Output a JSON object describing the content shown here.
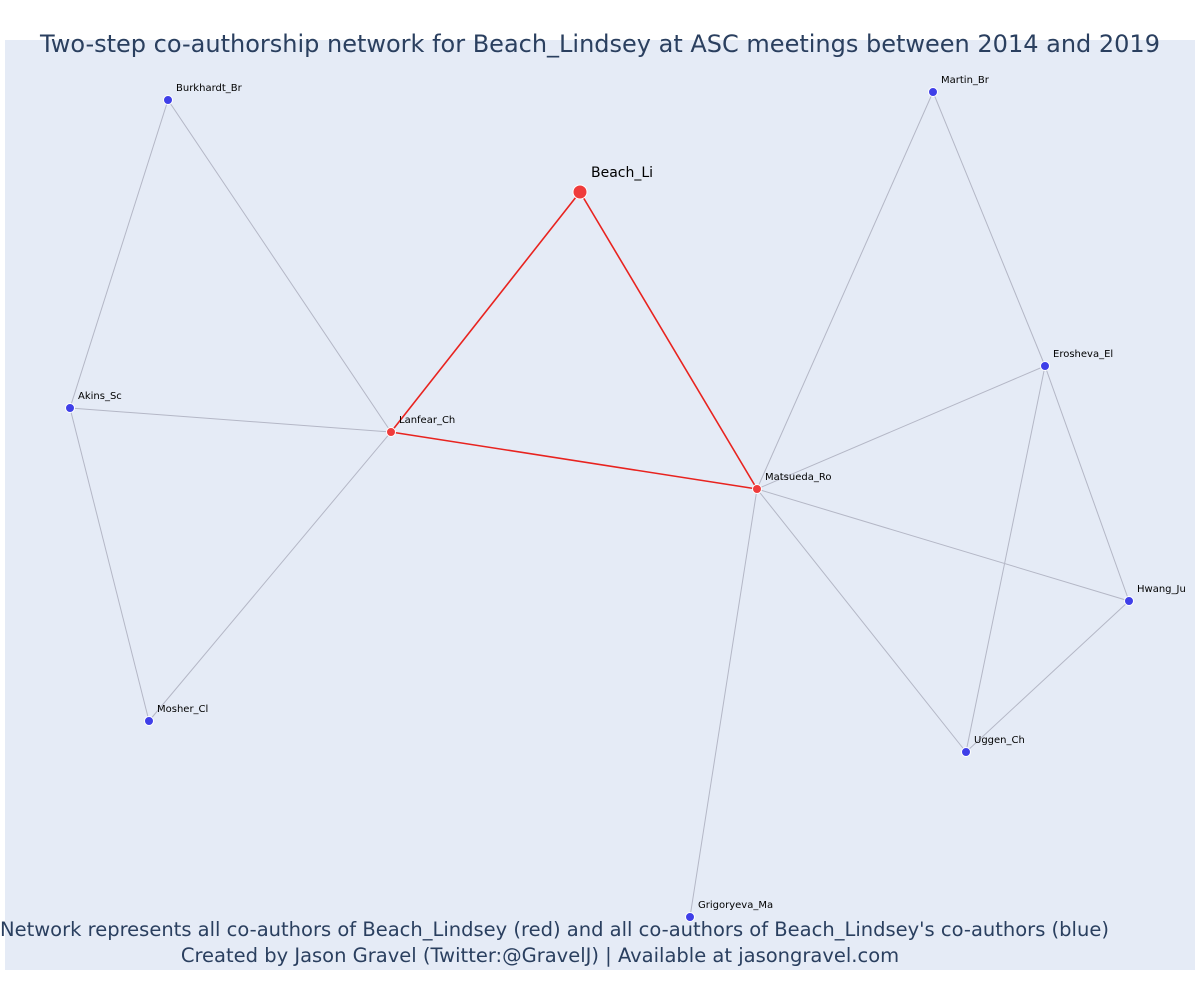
{
  "title": "Two-step co-authorship network for Beach_Lindsey at ASC meetings between 2014 and 2019",
  "caption": {
    "line1": "Network represents all co-authors of Beach_Lindsey (red) and all co-authors of Beach_Lindsey's co-authors (blue)",
    "line2": "Created by Jason Gravel (Twitter:@GravelJ) | Available at jasongravel.com"
  },
  "colors": {
    "background": "#e5ebf6",
    "focal_node": "#ef3b3b",
    "coauthor_node": "#ef3b3b",
    "second_step_node": "#3f3fe8",
    "focal_edge": "#e8231f",
    "other_edge": "#b4b7c6",
    "text": "#2a3f5f"
  },
  "nodes": [
    {
      "id": "Beach_Li",
      "label": "Beach_Li",
      "group": "focal"
    },
    {
      "id": "Lanfear_Ch",
      "label": "Lanfear_Ch",
      "group": "coauthor"
    },
    {
      "id": "Matsueda_Ro",
      "label": "Matsueda_Ro",
      "group": "coauthor"
    },
    {
      "id": "Burkhardt_Br",
      "label": "Burkhardt_Br",
      "group": "second"
    },
    {
      "id": "Akins_Sc",
      "label": "Akins_Sc",
      "group": "second"
    },
    {
      "id": "Mosher_Cl",
      "label": "Mosher_Cl",
      "group": "second"
    },
    {
      "id": "Martin_Br",
      "label": "Martin_Br",
      "group": "second"
    },
    {
      "id": "Erosheva_El",
      "label": "Erosheva_El",
      "group": "second"
    },
    {
      "id": "Hwang_Ju",
      "label": "Hwang_Ju",
      "group": "second"
    },
    {
      "id": "Uggen_Ch",
      "label": "Uggen_Ch",
      "group": "second"
    },
    {
      "id": "Grigoryeva_Ma",
      "label": "Grigoryeva_Ma",
      "group": "second"
    }
  ],
  "edges": [
    {
      "source": "Beach_Li",
      "target": "Lanfear_Ch",
      "type": "focal"
    },
    {
      "source": "Beach_Li",
      "target": "Matsueda_Ro",
      "type": "focal"
    },
    {
      "source": "Lanfear_Ch",
      "target": "Matsueda_Ro",
      "type": "focal"
    },
    {
      "source": "Burkhardt_Br",
      "target": "Akins_Sc",
      "type": "other"
    },
    {
      "source": "Burkhardt_Br",
      "target": "Lanfear_Ch",
      "type": "other"
    },
    {
      "source": "Akins_Sc",
      "target": "Lanfear_Ch",
      "type": "other"
    },
    {
      "source": "Akins_Sc",
      "target": "Mosher_Cl",
      "type": "other"
    },
    {
      "source": "Mosher_Cl",
      "target": "Lanfear_Ch",
      "type": "other"
    },
    {
      "source": "Martin_Br",
      "target": "Matsueda_Ro",
      "type": "other"
    },
    {
      "source": "Martin_Br",
      "target": "Erosheva_El",
      "type": "other"
    },
    {
      "source": "Erosheva_El",
      "target": "Matsueda_Ro",
      "type": "other"
    },
    {
      "source": "Erosheva_El",
      "target": "Hwang_Ju",
      "type": "other"
    },
    {
      "source": "Erosheva_El",
      "target": "Uggen_Ch",
      "type": "other"
    },
    {
      "source": "Matsueda_Ro",
      "target": "Hwang_Ju",
      "type": "other"
    },
    {
      "source": "Matsueda_Ro",
      "target": "Uggen_Ch",
      "type": "other"
    },
    {
      "source": "Matsueda_Ro",
      "target": "Grigoryeva_Ma",
      "type": "other"
    },
    {
      "source": "Hwang_Ju",
      "target": "Uggen_Ch",
      "type": "other"
    }
  ]
}
